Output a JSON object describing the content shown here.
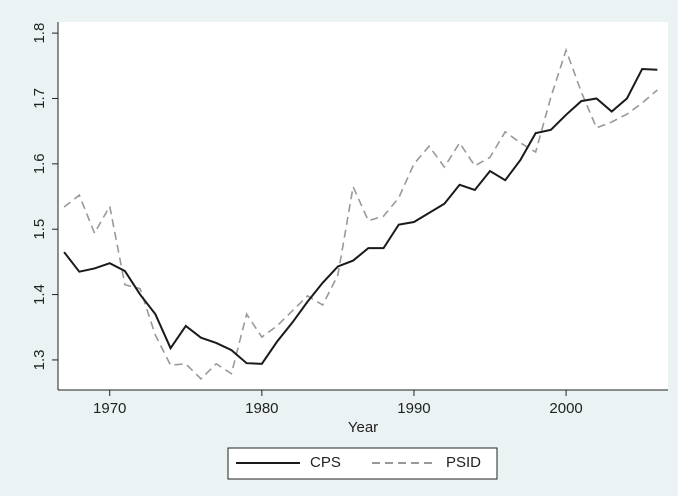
{
  "chart_data": {
    "type": "line",
    "x": [
      1967,
      1968,
      1969,
      1970,
      1971,
      1972,
      1973,
      1974,
      1975,
      1976,
      1977,
      1978,
      1979,
      1980,
      1981,
      1982,
      1983,
      1984,
      1985,
      1986,
      1987,
      1988,
      1989,
      1990,
      1991,
      1992,
      1993,
      1994,
      1995,
      1996,
      1997,
      1998,
      1999,
      2000,
      2001,
      2002,
      2003,
      2004,
      2005,
      2006
    ],
    "x_label": "Year",
    "series": [
      {
        "name": "CPS",
        "color": "#1a1a1a",
        "dashed": false,
        "values": [
          1.465,
          1.435,
          1.44,
          1.448,
          1.436,
          1.4,
          1.37,
          1.318,
          1.352,
          1.334,
          1.326,
          1.315,
          1.295,
          1.294,
          1.328,
          1.357,
          1.389,
          1.418,
          1.443,
          1.452,
          1.471,
          1.471,
          1.507,
          1.511,
          1.525,
          1.539,
          1.568,
          1.56,
          1.589,
          1.575,
          1.606,
          1.647,
          1.652,
          1.675,
          1.696,
          1.7,
          1.68,
          1.7,
          1.745,
          1.744
        ]
      },
      {
        "name": "PSID",
        "color": "#999999",
        "dashed": true,
        "values": [
          1.534,
          1.552,
          1.494,
          1.535,
          1.415,
          1.409,
          1.338,
          1.292,
          1.294,
          1.271,
          1.294,
          1.279,
          1.37,
          1.335,
          1.352,
          1.375,
          1.398,
          1.384,
          1.43,
          1.565,
          1.513,
          1.52,
          1.548,
          1.6,
          1.627,
          1.595,
          1.632,
          1.597,
          1.61,
          1.649,
          1.632,
          1.618,
          1.702,
          1.774,
          1.71,
          1.655,
          1.664,
          1.676,
          1.693,
          1.713
        ]
      }
    ],
    "xlim": [
      1966.6,
      2006.7
    ],
    "xticks": [
      1970,
      1980,
      1990,
      2000
    ],
    "ylim": [
      1.254,
      1.817
    ],
    "yticks": [
      1.3,
      1.4,
      1.5,
      1.6,
      1.7,
      1.8
    ],
    "grid": false,
    "legend": "bottom"
  }
}
